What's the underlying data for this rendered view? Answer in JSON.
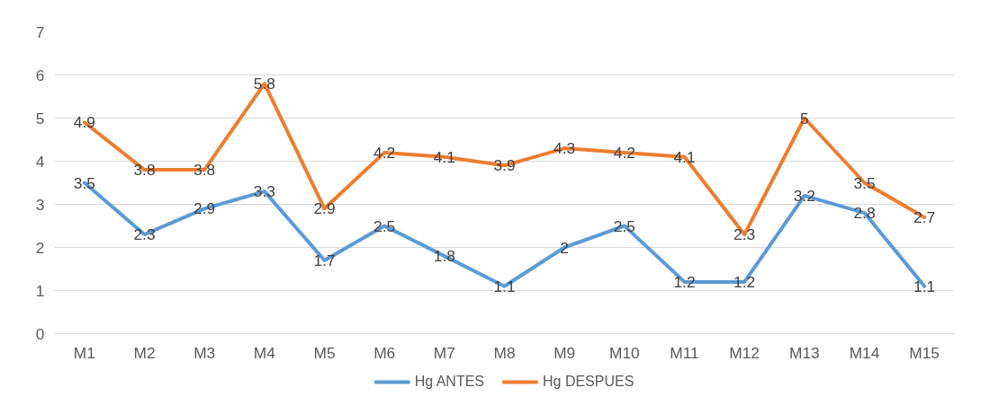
{
  "chart_data": {
    "type": "line",
    "categories": [
      "M1",
      "M2",
      "M3",
      "M4",
      "M5",
      "M6",
      "M7",
      "M8",
      "M9",
      "M10",
      "M11",
      "M12",
      "M13",
      "M14",
      "M15"
    ],
    "series": [
      {
        "name": "Hg ANTES",
        "color": "#5b9bd5",
        "values": [
          3.5,
          2.3,
          2.9,
          3.3,
          1.7,
          2.5,
          1.8,
          1.1,
          2,
          2.5,
          1.2,
          1.2,
          3.2,
          2.8,
          1.1
        ]
      },
      {
        "name": "Hg DESPUES",
        "color": "#ed7d31",
        "values": [
          4.9,
          3.8,
          3.8,
          5.8,
          2.9,
          4.2,
          4.1,
          3.9,
          4.3,
          4.2,
          4.1,
          2.3,
          5,
          3.5,
          2.7
        ]
      }
    ],
    "ylim": [
      0,
      7
    ],
    "yticks": [
      0,
      1,
      2,
      3,
      4,
      5,
      6,
      7
    ],
    "grid": "y",
    "legend": "bottom",
    "data_labels": true,
    "marker": "none"
  }
}
